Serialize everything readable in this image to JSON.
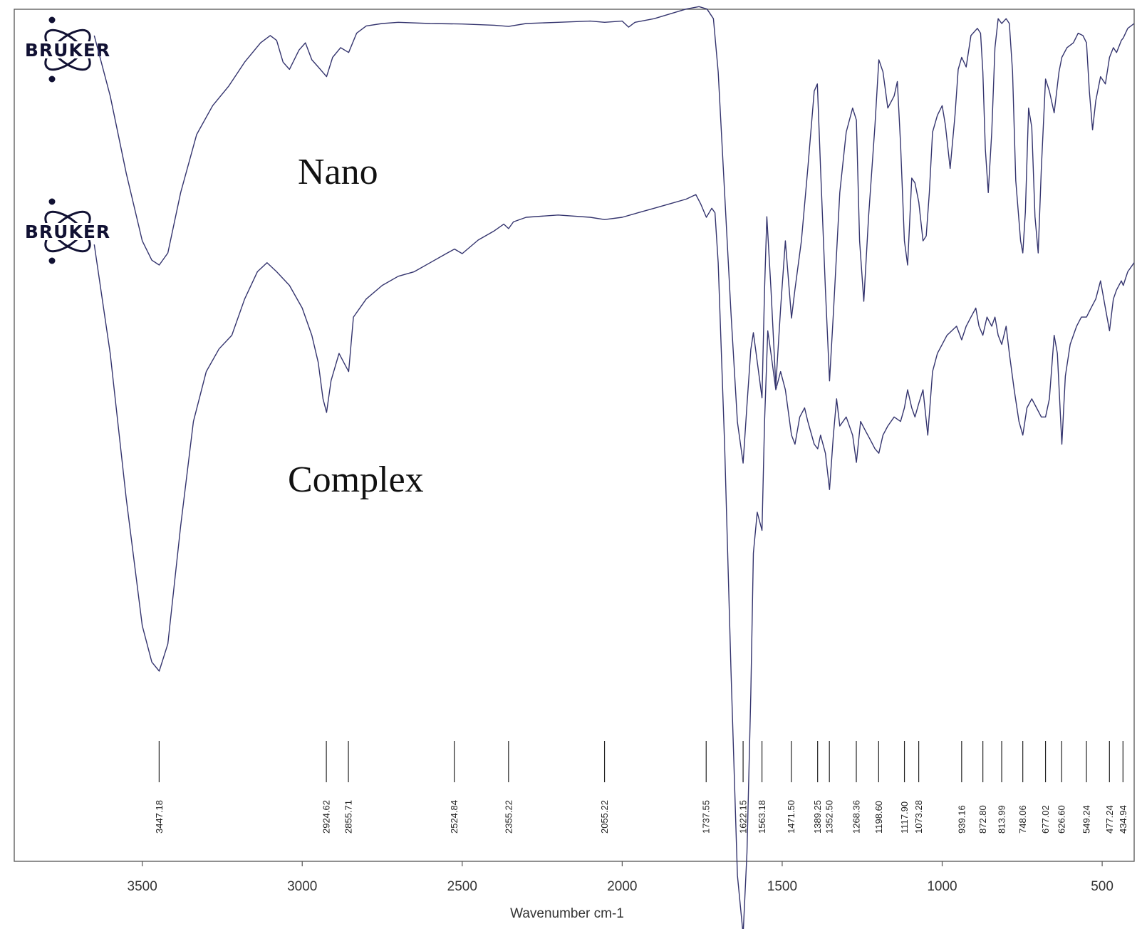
{
  "logo": {
    "text": "BRUKER"
  },
  "chart_data": {
    "type": "line",
    "xlabel": "Wavenumber cm-1",
    "ylabel": "",
    "xlim": [
      3900,
      400
    ],
    "x_ticks": [
      3500,
      3000,
      2500,
      2000,
      1500,
      1000,
      500
    ],
    "grid": false,
    "line_color": "#34346e",
    "series": [
      {
        "name": "Nano",
        "points": [
          [
            3650,
            0.95
          ],
          [
            3600,
            0.7
          ],
          [
            3550,
            0.38
          ],
          [
            3500,
            0.1
          ],
          [
            3470,
            0.02
          ],
          [
            3447,
            0.0
          ],
          [
            3420,
            0.05
          ],
          [
            3380,
            0.3
          ],
          [
            3330,
            0.54
          ],
          [
            3280,
            0.66
          ],
          [
            3230,
            0.74
          ],
          [
            3180,
            0.84
          ],
          [
            3130,
            0.92
          ],
          [
            3100,
            0.95
          ],
          [
            3080,
            0.93
          ],
          [
            3060,
            0.84
          ],
          [
            3040,
            0.81
          ],
          [
            3010,
            0.89
          ],
          [
            2990,
            0.92
          ],
          [
            2970,
            0.85
          ],
          [
            2950,
            0.82
          ],
          [
            2924,
            0.78
          ],
          [
            2905,
            0.86
          ],
          [
            2880,
            0.9
          ],
          [
            2855,
            0.88
          ],
          [
            2830,
            0.96
          ],
          [
            2800,
            0.99
          ],
          [
            2750,
            1.0
          ],
          [
            2700,
            1.005
          ],
          [
            2600,
            1.0
          ],
          [
            2500,
            0.998
          ],
          [
            2400,
            0.993
          ],
          [
            2355,
            0.988
          ],
          [
            2300,
            1.0
          ],
          [
            2200,
            1.005
          ],
          [
            2100,
            1.01
          ],
          [
            2055,
            1.005
          ],
          [
            2000,
            1.01
          ],
          [
            1980,
            0.985
          ],
          [
            1960,
            1.005
          ],
          [
            1900,
            1.02
          ],
          [
            1850,
            1.04
          ],
          [
            1800,
            1.06
          ],
          [
            1760,
            1.07
          ],
          [
            1735,
            1.06
          ],
          [
            1715,
            1.02
          ],
          [
            1700,
            0.8
          ],
          [
            1680,
            0.3
          ],
          [
            1660,
            -0.2
          ],
          [
            1640,
            -0.65
          ],
          [
            1622,
            -0.82
          ],
          [
            1610,
            -0.58
          ],
          [
            1598,
            -0.35
          ],
          [
            1590,
            -0.28
          ],
          [
            1578,
            -0.4
          ],
          [
            1563,
            -0.55
          ],
          [
            1555,
            -0.1
          ],
          [
            1548,
            0.2
          ],
          [
            1535,
            -0.1
          ],
          [
            1520,
            -0.5
          ],
          [
            1505,
            -0.18
          ],
          [
            1490,
            0.1
          ],
          [
            1471,
            -0.22
          ],
          [
            1460,
            -0.1
          ],
          [
            1440,
            0.1
          ],
          [
            1420,
            0.4
          ],
          [
            1400,
            0.72
          ],
          [
            1390,
            0.75
          ],
          [
            1380,
            0.4
          ],
          [
            1365,
            -0.1
          ],
          [
            1352,
            -0.48
          ],
          [
            1340,
            -0.2
          ],
          [
            1320,
            0.3
          ],
          [
            1300,
            0.55
          ],
          [
            1280,
            0.65
          ],
          [
            1268,
            0.6
          ],
          [
            1258,
            0.1
          ],
          [
            1245,
            -0.15
          ],
          [
            1230,
            0.2
          ],
          [
            1210,
            0.58
          ],
          [
            1198,
            0.85
          ],
          [
            1185,
            0.8
          ],
          [
            1170,
            0.65
          ],
          [
            1150,
            0.7
          ],
          [
            1140,
            0.76
          ],
          [
            1130,
            0.5
          ],
          [
            1118,
            0.1
          ],
          [
            1108,
            0.0
          ],
          [
            1095,
            0.36
          ],
          [
            1085,
            0.34
          ],
          [
            1073,
            0.26
          ],
          [
            1060,
            0.1
          ],
          [
            1050,
            0.12
          ],
          [
            1040,
            0.3
          ],
          [
            1030,
            0.55
          ],
          [
            1015,
            0.62
          ],
          [
            1000,
            0.66
          ],
          [
            990,
            0.58
          ],
          [
            975,
            0.4
          ],
          [
            960,
            0.62
          ],
          [
            950,
            0.81
          ],
          [
            939,
            0.86
          ],
          [
            925,
            0.82
          ],
          [
            910,
            0.95
          ],
          [
            890,
            0.98
          ],
          [
            880,
            0.96
          ],
          [
            873,
            0.8
          ],
          [
            865,
            0.48
          ],
          [
            856,
            0.3
          ],
          [
            845,
            0.55
          ],
          [
            835,
            0.9
          ],
          [
            825,
            1.02
          ],
          [
            814,
            1.0
          ],
          [
            800,
            1.02
          ],
          [
            790,
            1.0
          ],
          [
            780,
            0.8
          ],
          [
            770,
            0.35
          ],
          [
            755,
            0.1
          ],
          [
            748,
            0.05
          ],
          [
            740,
            0.22
          ],
          [
            730,
            0.65
          ],
          [
            720,
            0.57
          ],
          [
            710,
            0.2
          ],
          [
            700,
            0.05
          ],
          [
            690,
            0.4
          ],
          [
            677,
            0.77
          ],
          [
            665,
            0.72
          ],
          [
            650,
            0.63
          ],
          [
            635,
            0.8
          ],
          [
            626,
            0.86
          ],
          [
            610,
            0.9
          ],
          [
            590,
            0.92
          ],
          [
            575,
            0.96
          ],
          [
            560,
            0.95
          ],
          [
            549,
            0.92
          ],
          [
            540,
            0.72
          ],
          [
            530,
            0.56
          ],
          [
            520,
            0.68
          ],
          [
            505,
            0.78
          ],
          [
            490,
            0.75
          ],
          [
            477,
            0.86
          ],
          [
            465,
            0.9
          ],
          [
            455,
            0.88
          ],
          [
            440,
            0.93
          ],
          [
            434,
            0.94
          ],
          [
            420,
            0.98
          ],
          [
            400,
            1.0
          ]
        ]
      },
      {
        "name": "Complex",
        "points": [
          [
            3650,
            0.94
          ],
          [
            3600,
            0.7
          ],
          [
            3550,
            0.38
          ],
          [
            3500,
            0.1
          ],
          [
            3470,
            0.02
          ],
          [
            3447,
            0.0
          ],
          [
            3420,
            0.06
          ],
          [
            3380,
            0.32
          ],
          [
            3340,
            0.55
          ],
          [
            3300,
            0.66
          ],
          [
            3260,
            0.71
          ],
          [
            3220,
            0.74
          ],
          [
            3180,
            0.82
          ],
          [
            3140,
            0.88
          ],
          [
            3110,
            0.9
          ],
          [
            3080,
            0.88
          ],
          [
            3040,
            0.85
          ],
          [
            3000,
            0.8
          ],
          [
            2970,
            0.74
          ],
          [
            2950,
            0.68
          ],
          [
            2935,
            0.6
          ],
          [
            2924,
            0.57
          ],
          [
            2910,
            0.64
          ],
          [
            2885,
            0.7
          ],
          [
            2870,
            0.68
          ],
          [
            2855,
            0.66
          ],
          [
            2840,
            0.78
          ],
          [
            2800,
            0.82
          ],
          [
            2750,
            0.85
          ],
          [
            2700,
            0.87
          ],
          [
            2650,
            0.88
          ],
          [
            2600,
            0.9
          ],
          [
            2550,
            0.92
          ],
          [
            2524,
            0.93
          ],
          [
            2500,
            0.92
          ],
          [
            2450,
            0.95
          ],
          [
            2400,
            0.97
          ],
          [
            2370,
            0.985
          ],
          [
            2355,
            0.975
          ],
          [
            2340,
            0.99
          ],
          [
            2300,
            1.0
          ],
          [
            2200,
            1.005
          ],
          [
            2100,
            1.0
          ],
          [
            2055,
            0.995
          ],
          [
            2000,
            1.0
          ],
          [
            1950,
            1.01
          ],
          [
            1900,
            1.02
          ],
          [
            1850,
            1.03
          ],
          [
            1800,
            1.04
          ],
          [
            1770,
            1.05
          ],
          [
            1755,
            1.03
          ],
          [
            1737,
            1.0
          ],
          [
            1720,
            1.02
          ],
          [
            1710,
            1.01
          ],
          [
            1700,
            0.9
          ],
          [
            1680,
            0.5
          ],
          [
            1660,
            0.0
          ],
          [
            1640,
            -0.45
          ],
          [
            1622,
            -0.58
          ],
          [
            1610,
            -0.4
          ],
          [
            1598,
            -0.05
          ],
          [
            1590,
            0.26
          ],
          [
            1578,
            0.35
          ],
          [
            1563,
            0.31
          ],
          [
            1555,
            0.55
          ],
          [
            1545,
            0.75
          ],
          [
            1535,
            0.7
          ],
          [
            1520,
            0.62
          ],
          [
            1505,
            0.66
          ],
          [
            1490,
            0.62
          ],
          [
            1471,
            0.52
          ],
          [
            1460,
            0.5
          ],
          [
            1445,
            0.56
          ],
          [
            1430,
            0.58
          ],
          [
            1420,
            0.55
          ],
          [
            1400,
            0.5
          ],
          [
            1389,
            0.49
          ],
          [
            1380,
            0.52
          ],
          [
            1365,
            0.48
          ],
          [
            1352,
            0.4
          ],
          [
            1340,
            0.52
          ],
          [
            1330,
            0.6
          ],
          [
            1320,
            0.54
          ],
          [
            1300,
            0.56
          ],
          [
            1280,
            0.52
          ],
          [
            1268,
            0.46
          ],
          [
            1255,
            0.55
          ],
          [
            1240,
            0.53
          ],
          [
            1225,
            0.51
          ],
          [
            1210,
            0.49
          ],
          [
            1198,
            0.48
          ],
          [
            1185,
            0.52
          ],
          [
            1170,
            0.54
          ],
          [
            1150,
            0.56
          ],
          [
            1130,
            0.55
          ],
          [
            1118,
            0.58
          ],
          [
            1108,
            0.62
          ],
          [
            1095,
            0.58
          ],
          [
            1085,
            0.56
          ],
          [
            1073,
            0.59
          ],
          [
            1060,
            0.62
          ],
          [
            1045,
            0.52
          ],
          [
            1030,
            0.66
          ],
          [
            1015,
            0.7
          ],
          [
            1000,
            0.72
          ],
          [
            985,
            0.74
          ],
          [
            970,
            0.75
          ],
          [
            955,
            0.76
          ],
          [
            939,
            0.73
          ],
          [
            925,
            0.76
          ],
          [
            910,
            0.78
          ],
          [
            895,
            0.8
          ],
          [
            885,
            0.76
          ],
          [
            873,
            0.74
          ],
          [
            860,
            0.78
          ],
          [
            845,
            0.76
          ],
          [
            835,
            0.78
          ],
          [
            825,
            0.74
          ],
          [
            814,
            0.72
          ],
          [
            800,
            0.76
          ],
          [
            790,
            0.7
          ],
          [
            775,
            0.62
          ],
          [
            760,
            0.55
          ],
          [
            748,
            0.52
          ],
          [
            735,
            0.58
          ],
          [
            720,
            0.6
          ],
          [
            705,
            0.58
          ],
          [
            690,
            0.56
          ],
          [
            677,
            0.56
          ],
          [
            665,
            0.6
          ],
          [
            650,
            0.74
          ],
          [
            640,
            0.7
          ],
          [
            626,
            0.5
          ],
          [
            615,
            0.65
          ],
          [
            600,
            0.72
          ],
          [
            580,
            0.76
          ],
          [
            565,
            0.78
          ],
          [
            549,
            0.78
          ],
          [
            535,
            0.8
          ],
          [
            520,
            0.82
          ],
          [
            505,
            0.86
          ],
          [
            490,
            0.8
          ],
          [
            477,
            0.75
          ],
          [
            465,
            0.82
          ],
          [
            455,
            0.84
          ],
          [
            440,
            0.86
          ],
          [
            434,
            0.85
          ],
          [
            420,
            0.88
          ],
          [
            400,
            0.9
          ]
        ]
      }
    ],
    "peak_labels": [
      "3447.18",
      "2924.62",
      "2855.71",
      "2524.84",
      "2355.22",
      "2055.22",
      "1737.55",
      "1622.15",
      "1563.18",
      "1471.50",
      "1389.25",
      "1352.50",
      "1268.36",
      "1198.60",
      "1117.90",
      "1073.28",
      "939.16",
      "872.80",
      "813.99",
      "748.06",
      "677.02",
      "626.60",
      "549.24",
      "477.24",
      "434.94"
    ]
  }
}
